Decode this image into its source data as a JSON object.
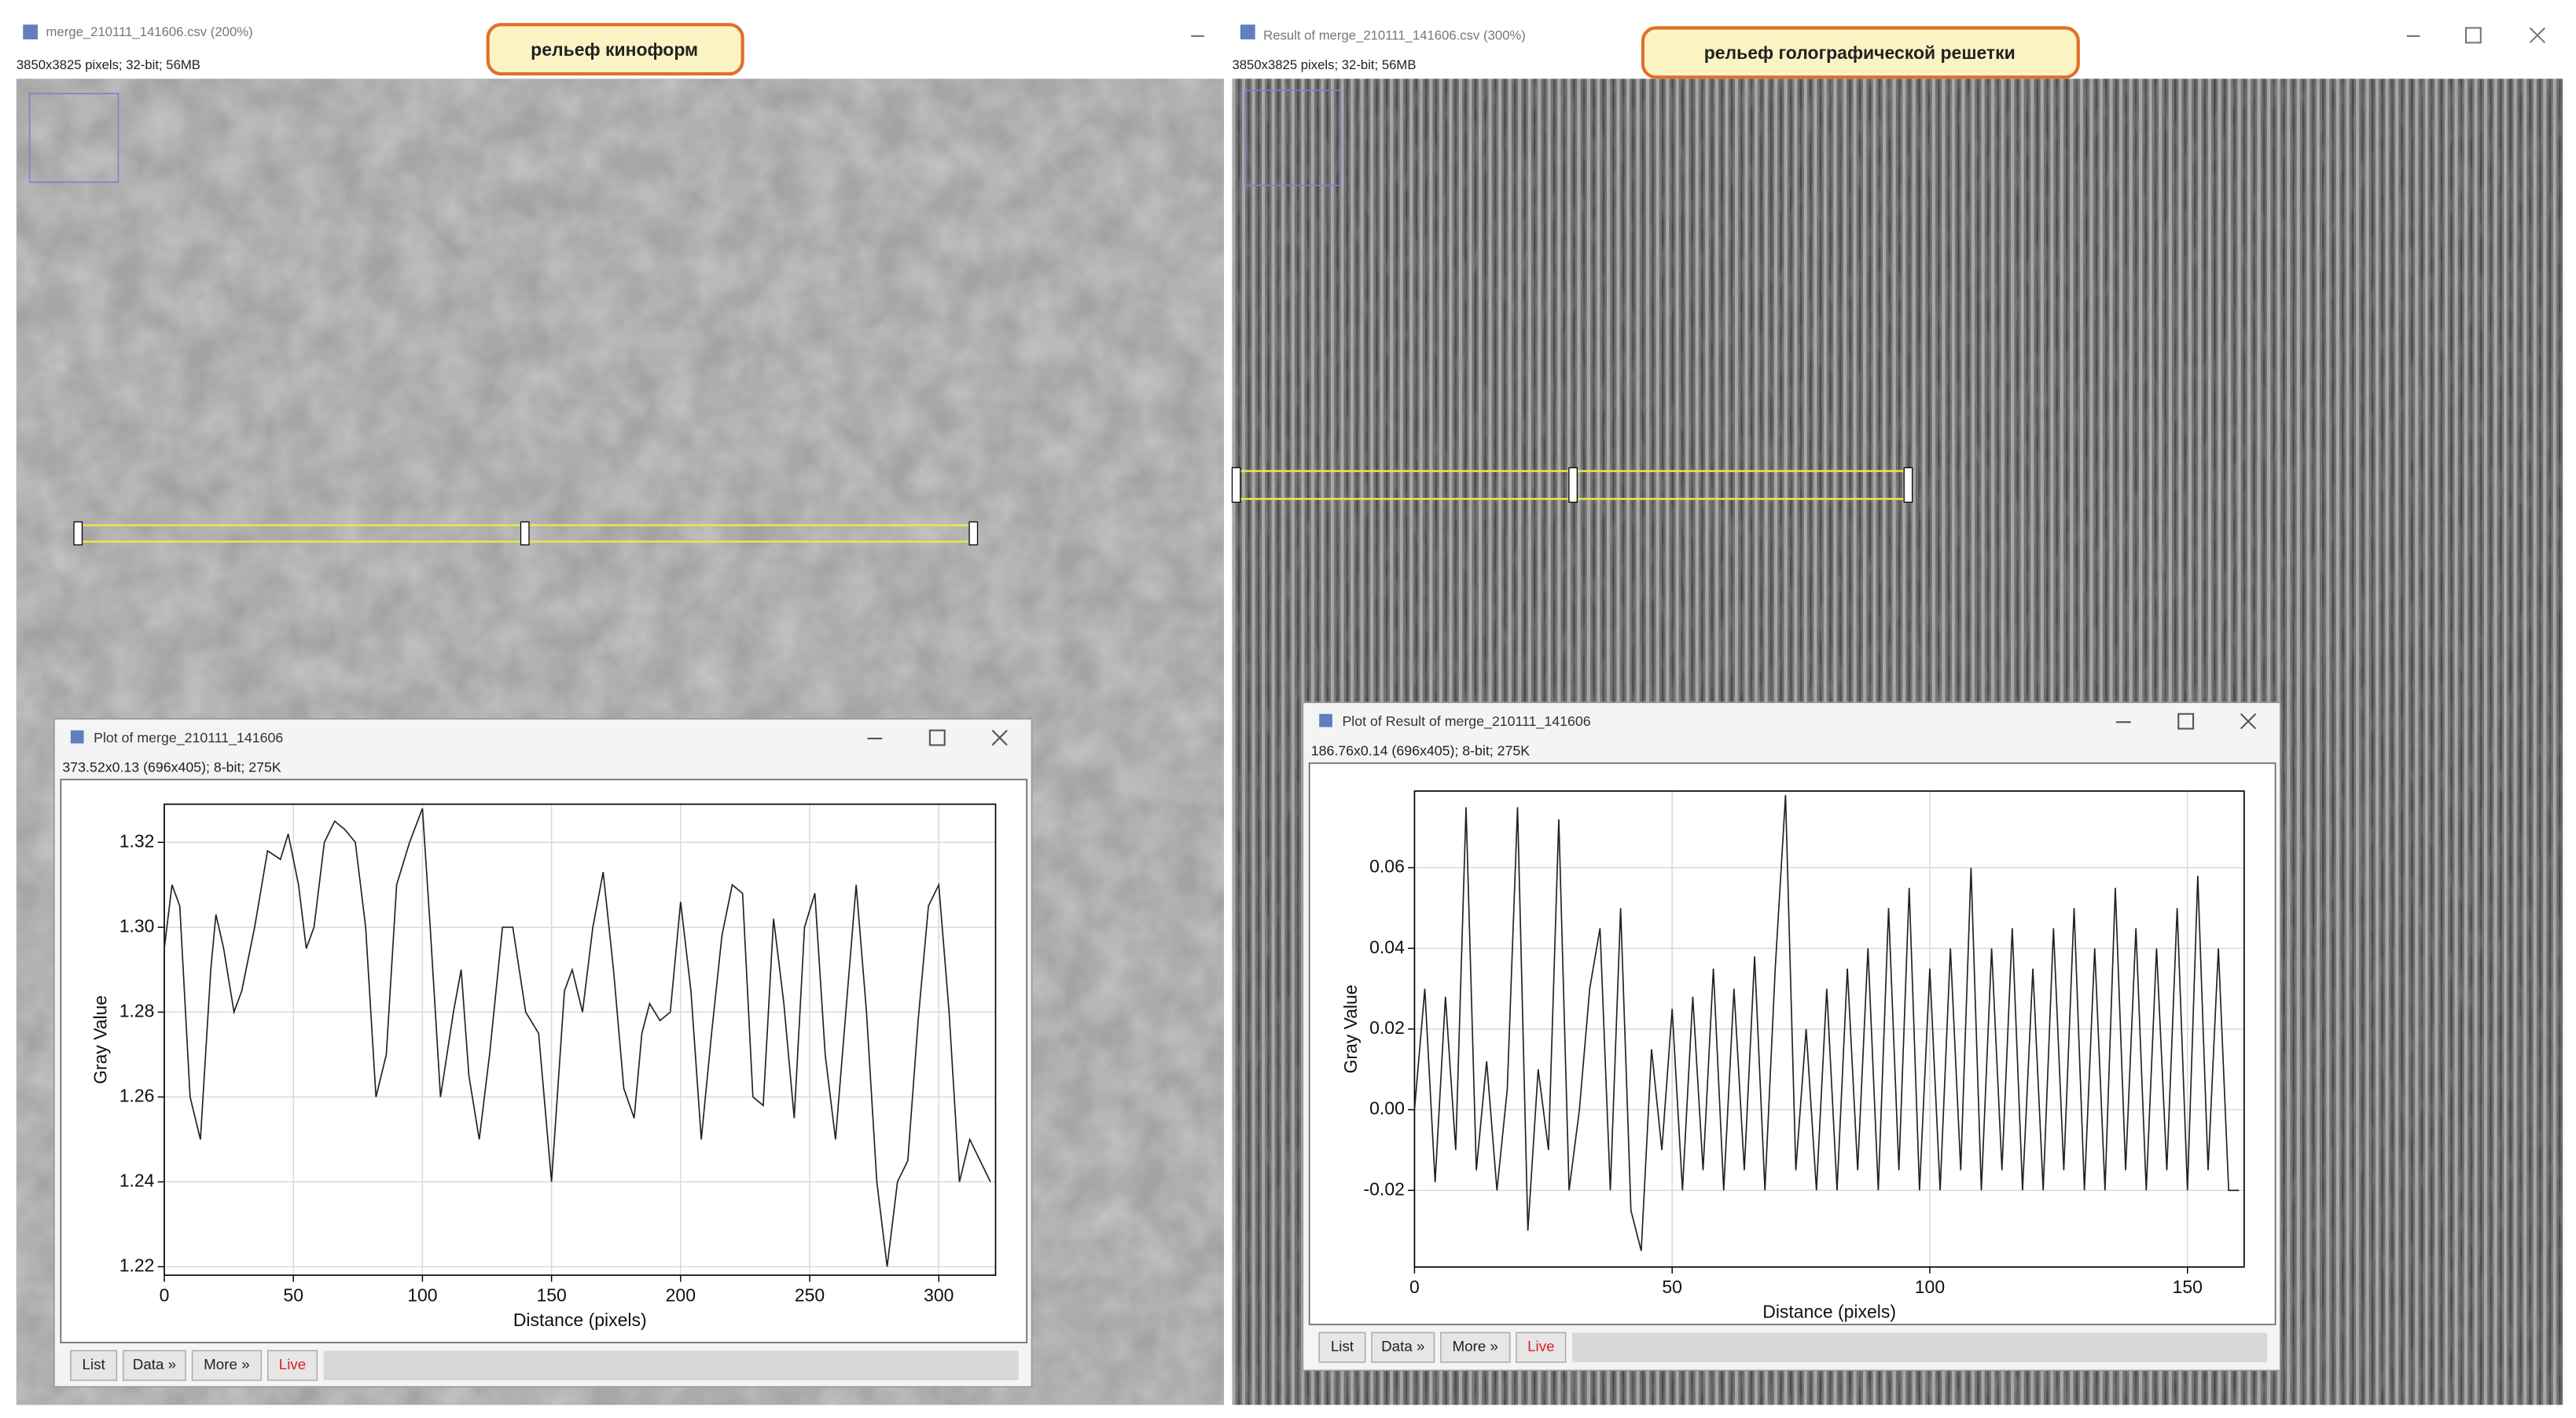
{
  "windows": [
    {
      "title": "merge_210111_141606.csv (200%)",
      "info": "3850x3825 pixels; 32-bit; 56MB",
      "callout": "рельеф киноформ"
    },
    {
      "title": "Result of merge_210111_141606.csv (300%)",
      "info": "3850x3825 pixels; 32-bit; 56MB",
      "callout": "рельеф голографической решетки"
    }
  ],
  "plot_windows": [
    {
      "title": "Plot of merge_210111_141606",
      "info": "373.52x0.13  (696x405); 8-bit; 275K",
      "buttons": [
        "List",
        "Data »",
        "More »",
        "Live"
      ]
    },
    {
      "title": "Plot of Result of merge_210111_141606",
      "info": "186.76x0.14  (696x405); 8-bit; 275K",
      "buttons": [
        "List",
        "Data »",
        "More »",
        "Live"
      ]
    }
  ],
  "chart_data": [
    {
      "type": "line",
      "xlabel": "Distance (pixels)",
      "ylabel": "Gray Value",
      "x": [
        0,
        3,
        6,
        10,
        14,
        18,
        20,
        23,
        27,
        30,
        35,
        40,
        45,
        48,
        52,
        55,
        58,
        62,
        66,
        70,
        74,
        78,
        82,
        86,
        90,
        95,
        100,
        103,
        107,
        112,
        115,
        118,
        122,
        126,
        131,
        135,
        140,
        145,
        150,
        155,
        158,
        162,
        166,
        170,
        174,
        178,
        182,
        185,
        188,
        192,
        196,
        200,
        204,
        208,
        212,
        216,
        220,
        224,
        228,
        232,
        236,
        240,
        244,
        248,
        252,
        256,
        260,
        264,
        268,
        272,
        276,
        280,
        284,
        288,
        292,
        296,
        300,
        304,
        308,
        312,
        316,
        320
      ],
      "series": [
        {
          "color": "#222222",
          "values": [
            1.295,
            1.31,
            1.305,
            1.26,
            1.25,
            1.29,
            1.303,
            1.295,
            1.28,
            1.285,
            1.3,
            1.318,
            1.316,
            1.322,
            1.31,
            1.295,
            1.3,
            1.32,
            1.325,
            1.323,
            1.32,
            1.3,
            1.26,
            1.27,
            1.31,
            1.32,
            1.328,
            1.3,
            1.26,
            1.28,
            1.29,
            1.265,
            1.25,
            1.27,
            1.3,
            1.3,
            1.28,
            1.275,
            1.24,
            1.285,
            1.29,
            1.28,
            1.3,
            1.313,
            1.29,
            1.262,
            1.255,
            1.275,
            1.282,
            1.278,
            1.28,
            1.306,
            1.285,
            1.25,
            1.275,
            1.298,
            1.31,
            1.308,
            1.26,
            1.258,
            1.302,
            1.282,
            1.255,
            1.3,
            1.308,
            1.27,
            1.25,
            1.28,
            1.31,
            1.28,
            1.24,
            1.22,
            1.24,
            1.245,
            1.278,
            1.305,
            1.31,
            1.28,
            1.24,
            1.25,
            1.245,
            1.24
          ]
        }
      ],
      "xlim": [
        0,
        322
      ],
      "ylim": [
        1.218,
        1.329
      ],
      "xticks": [
        0,
        50,
        100,
        150,
        200,
        250,
        300
      ],
      "yticks": [
        1.22,
        1.24,
        1.26,
        1.28,
        {
          "value": 1.3,
          "label": "1.30"
        },
        1.32
      ],
      "grid": true
    },
    {
      "type": "line",
      "xlabel": "Distance (pixels)",
      "ylabel": "Gray Value",
      "x": [
        0,
        2,
        4,
        6,
        8,
        10,
        12,
        14,
        16,
        18,
        20,
        22,
        24,
        26,
        28,
        30,
        32,
        34,
        36,
        38,
        40,
        42,
        44,
        46,
        48,
        50,
        52,
        54,
        56,
        58,
        60,
        62,
        64,
        66,
        68,
        70,
        72,
        74,
        76,
        78,
        80,
        82,
        84,
        86,
        88,
        90,
        92,
        94,
        96,
        98,
        100,
        102,
        104,
        106,
        108,
        110,
        112,
        114,
        116,
        118,
        120,
        122,
        124,
        126,
        128,
        130,
        132,
        134,
        136,
        138,
        140,
        142,
        144,
        146,
        148,
        150,
        152,
        154,
        156,
        158,
        160
      ],
      "series": [
        {
          "color": "#222222",
          "values": [
            0.0,
            0.03,
            -0.018,
            0.028,
            -0.01,
            0.075,
            -0.015,
            0.012,
            -0.02,
            0.005,
            0.075,
            -0.03,
            0.01,
            -0.01,
            0.072,
            -0.02,
            0.0,
            0.03,
            0.045,
            -0.02,
            0.05,
            -0.025,
            -0.035,
            0.015,
            -0.01,
            0.025,
            -0.02,
            0.028,
            -0.015,
            0.035,
            -0.02,
            0.03,
            -0.015,
            0.038,
            -0.02,
            0.035,
            0.078,
            -0.015,
            0.02,
            -0.02,
            0.03,
            -0.02,
            0.035,
            -0.015,
            0.04,
            -0.02,
            0.05,
            -0.015,
            0.055,
            -0.02,
            0.035,
            -0.02,
            0.04,
            -0.015,
            0.06,
            -0.02,
            0.04,
            -0.015,
            0.045,
            -0.02,
            0.035,
            -0.02,
            0.045,
            -0.015,
            0.05,
            -0.02,
            0.04,
            -0.02,
            0.055,
            -0.015,
            0.045,
            -0.02,
            0.04,
            -0.015,
            0.05,
            -0.02,
            0.058,
            -0.015,
            0.04,
            -0.02,
            -0.02
          ]
        }
      ],
      "xlim": [
        0,
        161
      ],
      "ylim": [
        -0.039,
        0.079
      ],
      "xticks": [
        0,
        50,
        100,
        150
      ],
      "yticks": [
        -0.02,
        {
          "value": 0,
          "label": "0.00"
        },
        0.02,
        0.04,
        0.06
      ],
      "grid": true
    }
  ]
}
